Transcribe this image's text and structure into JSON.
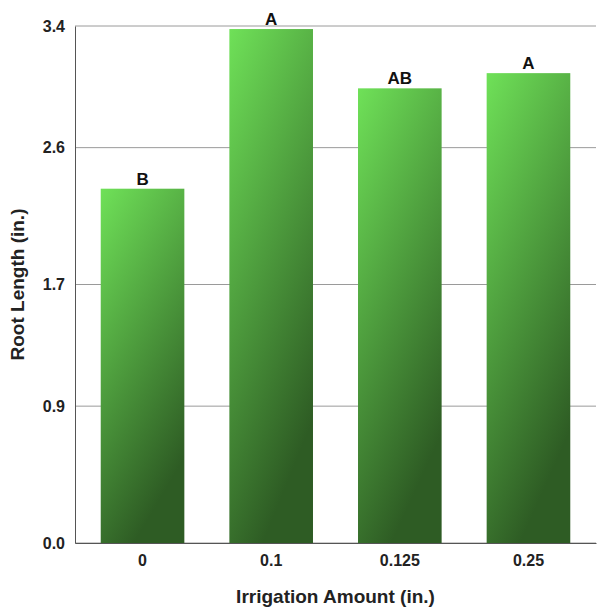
{
  "chart_data": {
    "type": "bar",
    "x_label": "Irrigation Amount (in.)",
    "y_label": "Root Length (in.)",
    "categories": [
      "0",
      "0.1",
      "0.125",
      "0.25"
    ],
    "values": [
      2.33,
      3.38,
      2.99,
      3.09
    ],
    "annotations": [
      "B",
      "A",
      "AB",
      "A"
    ],
    "color": "#3f7f32",
    "ylim": [
      0,
      3.4
    ],
    "yticks": [
      {
        "value": 0,
        "label": "0.0"
      },
      0.9,
      1.7,
      2.6,
      3.4
    ],
    "grid": true
  }
}
